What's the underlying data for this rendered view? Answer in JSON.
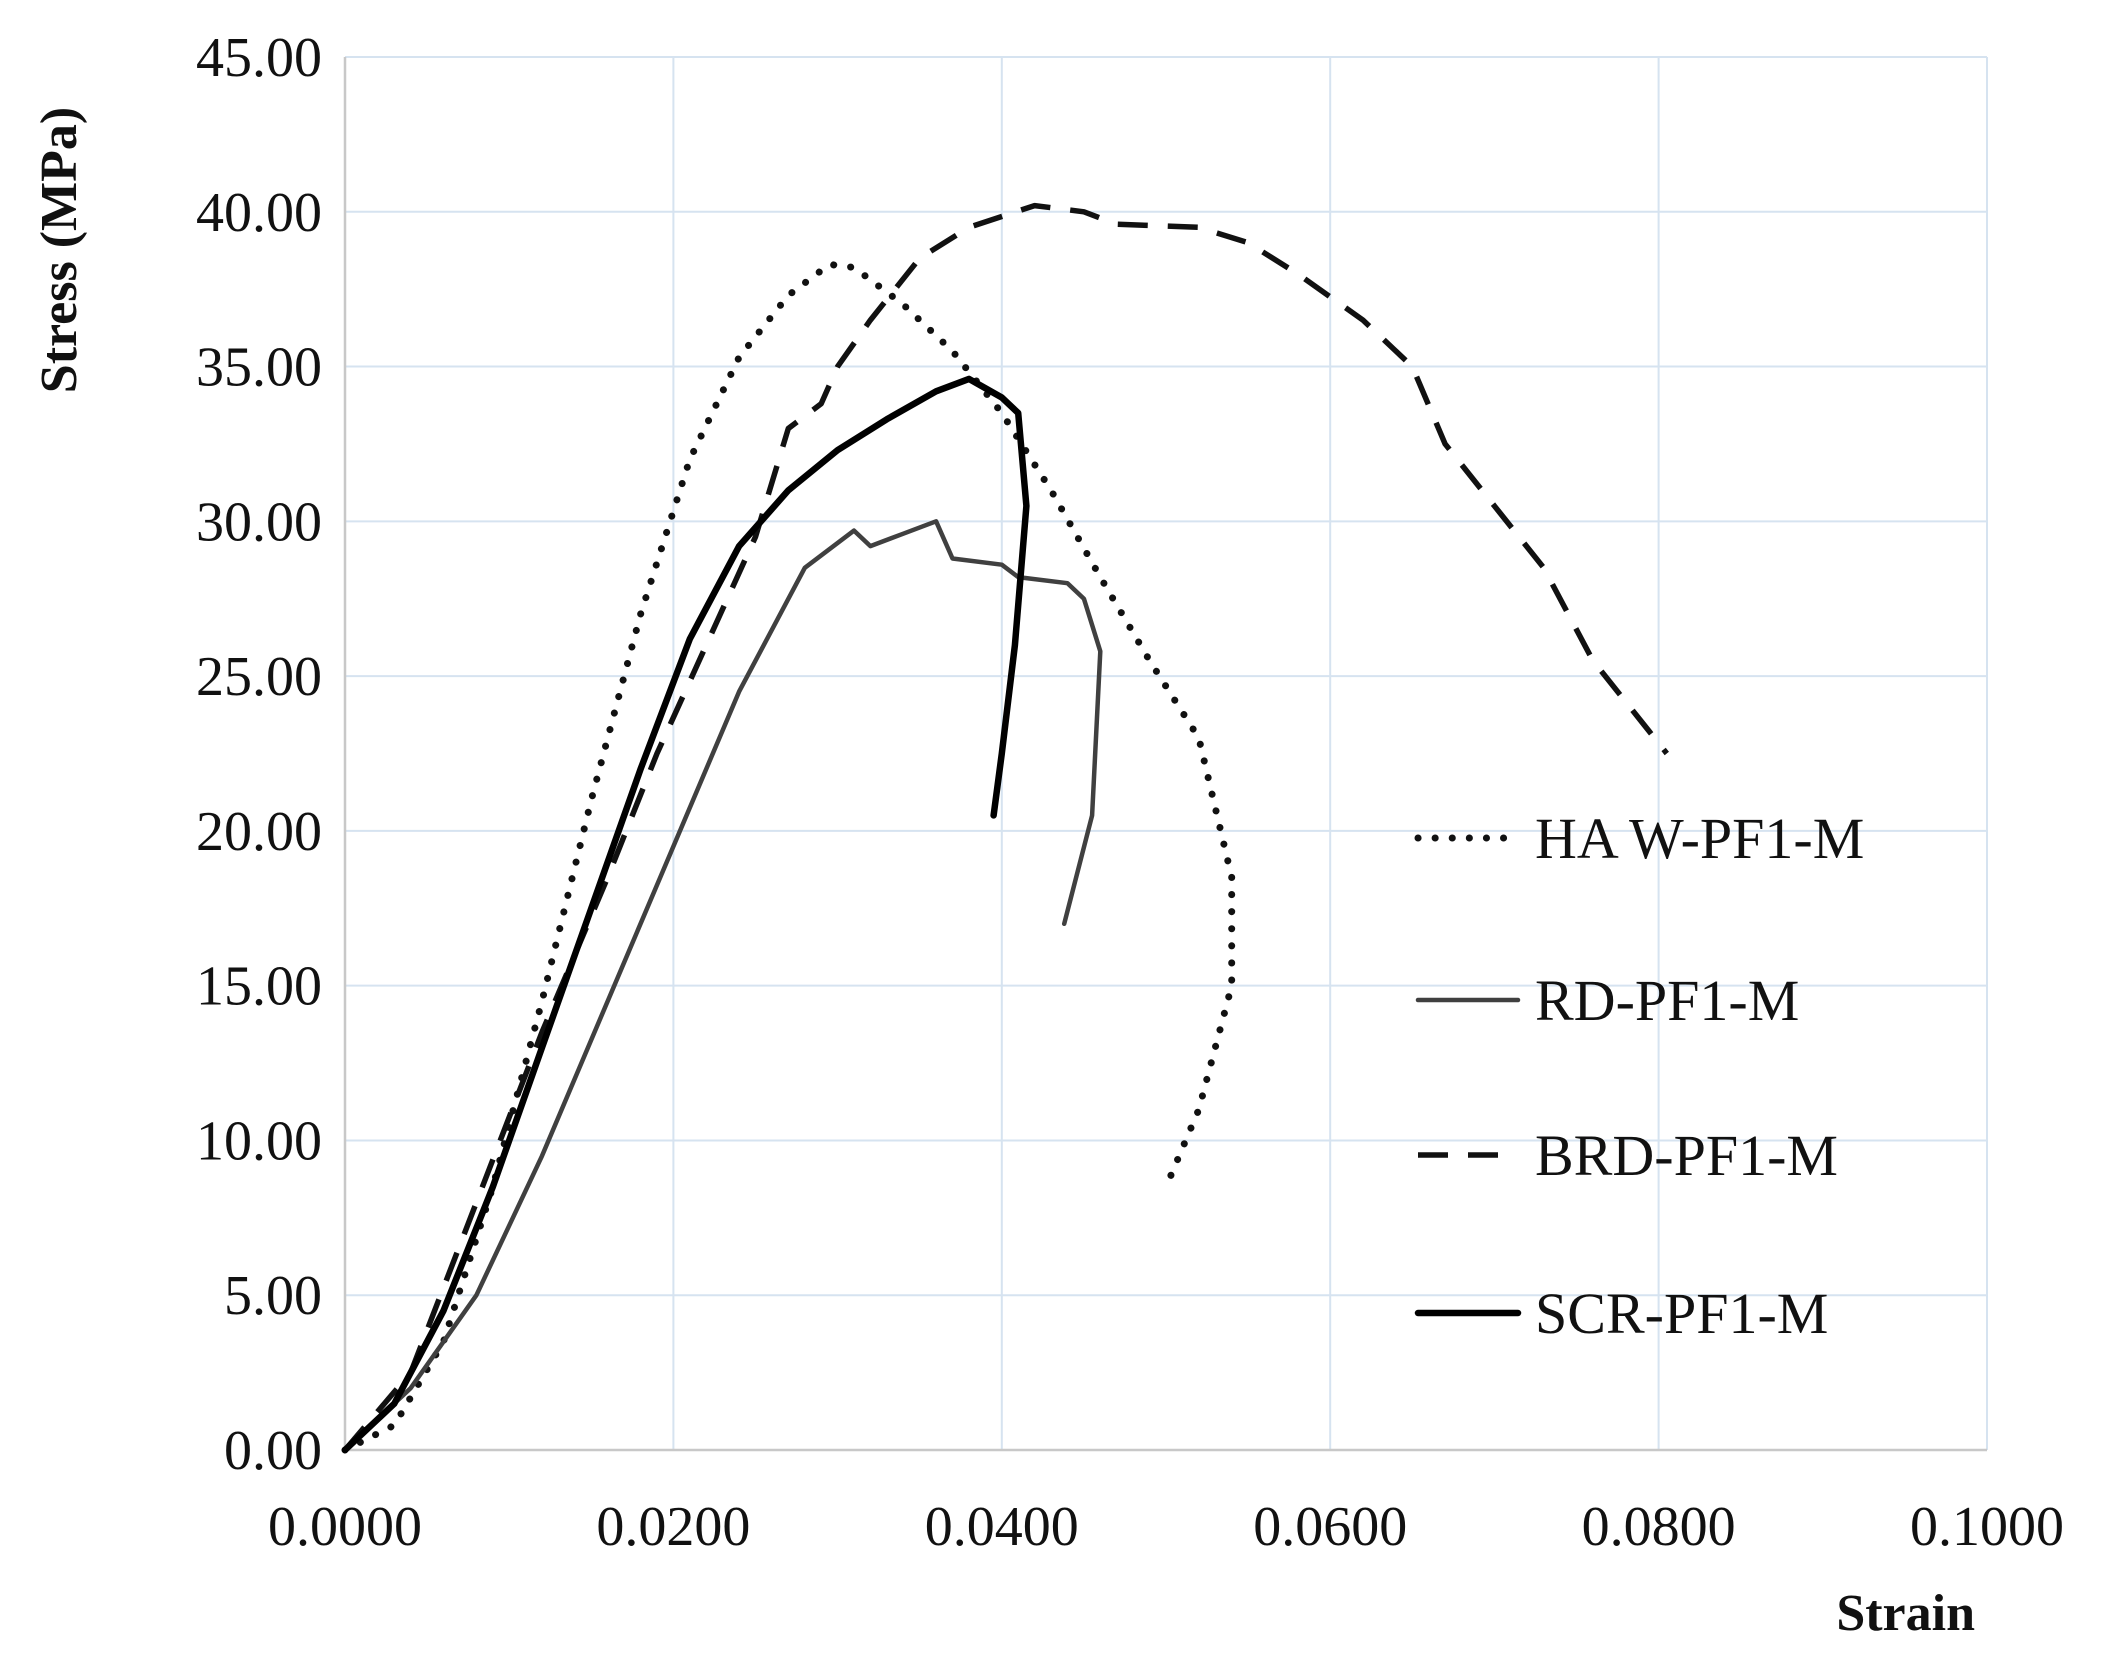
{
  "chart_data": {
    "type": "line",
    "xlabel": "Strain",
    "ylabel": "Stress  (MPa)",
    "xlim": [
      0,
      0.1
    ],
    "ylim": [
      0,
      45
    ],
    "x_ticks": [
      "0.0000",
      "0.0200",
      "0.0400",
      "0.0600",
      "0.0800",
      "0.1000"
    ],
    "y_ticks": [
      "0.00",
      "5.00",
      "10.00",
      "15.00",
      "20.00",
      "25.00",
      "30.00",
      "35.00",
      "40.00",
      "45.00"
    ],
    "grid": true,
    "legend_position": "right",
    "series": [
      {
        "name": "HA W-PF1-M",
        "style": "dotted",
        "color": "#111111",
        "points": [
          [
            0,
            0
          ],
          [
            0.003,
            0.8
          ],
          [
            0.006,
            3.5
          ],
          [
            0.009,
            8.5
          ],
          [
            0.012,
            14.5
          ],
          [
            0.015,
            21
          ],
          [
            0.018,
            27
          ],
          [
            0.021,
            32
          ],
          [
            0.024,
            35.3
          ],
          [
            0.027,
            37.3
          ],
          [
            0.0295,
            38.3
          ],
          [
            0.031,
            38.2
          ],
          [
            0.034,
            37
          ],
          [
            0.037,
            35.5
          ],
          [
            0.04,
            33.5
          ],
          [
            0.043,
            31
          ],
          [
            0.046,
            28.2
          ],
          [
            0.049,
            25.5
          ],
          [
            0.052,
            23
          ],
          [
            0.054,
            18.5
          ],
          [
            0.054,
            15
          ],
          [
            0.052,
            11
          ],
          [
            0.05,
            8.5
          ]
        ]
      },
      {
        "name": "RD-PF1-M",
        "style": "solid",
        "color": "#404040",
        "points": [
          [
            0,
            0
          ],
          [
            0.004,
            2
          ],
          [
            0.008,
            5
          ],
          [
            0.012,
            9.5
          ],
          [
            0.016,
            14.5
          ],
          [
            0.02,
            19.5
          ],
          [
            0.024,
            24.5
          ],
          [
            0.028,
            28.5
          ],
          [
            0.031,
            29.7
          ],
          [
            0.032,
            29.2
          ],
          [
            0.034,
            29.6
          ],
          [
            0.036,
            30
          ],
          [
            0.037,
            28.8
          ],
          [
            0.04,
            28.6
          ],
          [
            0.041,
            28.2
          ],
          [
            0.044,
            28
          ],
          [
            0.045,
            27.5
          ],
          [
            0.046,
            25.8
          ],
          [
            0.0455,
            20.5
          ],
          [
            0.0438,
            17
          ]
        ]
      },
      {
        "name": "BRD-PF1-M",
        "style": "dashed",
        "color": "#111111",
        "points": [
          [
            0,
            0
          ],
          [
            0.004,
            2.5
          ],
          [
            0.008,
            8
          ],
          [
            0.012,
            13.5
          ],
          [
            0.016,
            18.5
          ],
          [
            0.019,
            22.5
          ],
          [
            0.022,
            26
          ],
          [
            0.025,
            29.5
          ],
          [
            0.027,
            33
          ],
          [
            0.029,
            33.8
          ],
          [
            0.03,
            35
          ],
          [
            0.032,
            36.5
          ],
          [
            0.035,
            38.5
          ],
          [
            0.038,
            39.5
          ],
          [
            0.042,
            40.2
          ],
          [
            0.045,
            40
          ],
          [
            0.047,
            39.6
          ],
          [
            0.052,
            39.5
          ],
          [
            0.055,
            39
          ],
          [
            0.058,
            38
          ],
          [
            0.062,
            36.5
          ],
          [
            0.065,
            35
          ],
          [
            0.067,
            32.5
          ],
          [
            0.07,
            30.5
          ],
          [
            0.073,
            28.5
          ],
          [
            0.076,
            25.5
          ],
          [
            0.079,
            23.5
          ],
          [
            0.0805,
            22.5
          ]
        ]
      },
      {
        "name": "SCR-PF1-M",
        "style": "solid",
        "color": "#000000",
        "points": [
          [
            0,
            0
          ],
          [
            0.003,
            1.5
          ],
          [
            0.006,
            4.5
          ],
          [
            0.009,
            8.5
          ],
          [
            0.012,
            13
          ],
          [
            0.015,
            17.5
          ],
          [
            0.018,
            22
          ],
          [
            0.021,
            26.2
          ],
          [
            0.024,
            29.2
          ],
          [
            0.027,
            31
          ],
          [
            0.03,
            32.3
          ],
          [
            0.033,
            33.3
          ],
          [
            0.036,
            34.2
          ],
          [
            0.038,
            34.6
          ],
          [
            0.04,
            34
          ],
          [
            0.041,
            33.5
          ],
          [
            0.0415,
            30.5
          ],
          [
            0.0408,
            26
          ],
          [
            0.04,
            22.5
          ],
          [
            0.0395,
            20.5
          ]
        ]
      }
    ]
  }
}
